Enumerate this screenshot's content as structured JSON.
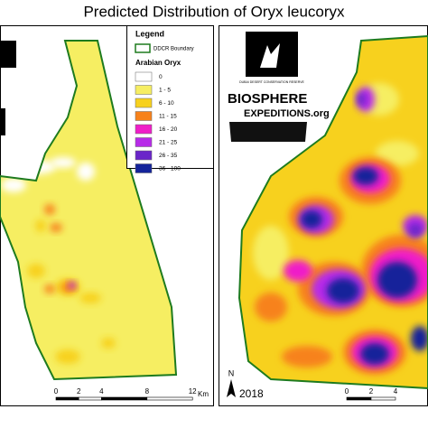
{
  "title": "Predicted Distribution of Oryx leucoryx",
  "legend": {
    "title": "Legend",
    "boundary_label": "DDCR Boundary",
    "layer_title": "Arabian Oryx",
    "boundary_color": "#1e7b1e",
    "classes": [
      {
        "label": "0",
        "color": "#ffffff"
      },
      {
        "label": "1 - 5",
        "color": "#f6ee62"
      },
      {
        "label": "6 - 10",
        "color": "#f7d11e"
      },
      {
        "label": "11 - 15",
        "color": "#f7821b"
      },
      {
        "label": "16 - 20",
        "color": "#ef1fc8"
      },
      {
        "label": "21 - 25",
        "color": "#b72be8"
      },
      {
        "label": "26 - 35",
        "color": "#6a26c9"
      },
      {
        "label": "36 - 100",
        "color": "#14249a"
      }
    ]
  },
  "left_map": {
    "scale_labels": [
      "0",
      "2",
      "4",
      "8",
      "12"
    ],
    "scale_unit": "Km"
  },
  "right_map": {
    "north": "N",
    "year": "2018",
    "scale_labels": [
      "0",
      "2",
      "4"
    ],
    "logos": {
      "reserve": "DUBAI DESERT CONSERVATION RESERVE",
      "biosphere": "BIOSPHERE",
      "expeditions": "EXPEDITIONS.org"
    }
  }
}
